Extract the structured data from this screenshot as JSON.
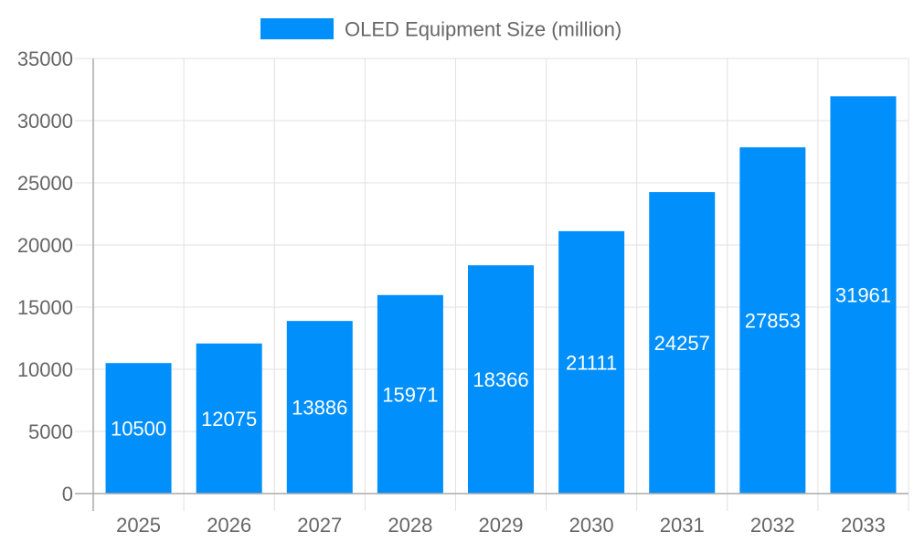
{
  "chart_data": {
    "type": "bar",
    "categories": [
      "2025",
      "2026",
      "2027",
      "2028",
      "2029",
      "2030",
      "2031",
      "2032",
      "2033"
    ],
    "series": [
      {
        "name": "OLED Equipment Size (million)",
        "values": [
          10500,
          12075,
          13886,
          15971,
          18366,
          21111,
          24257,
          27853,
          31961
        ]
      }
    ],
    "title": "",
    "xlabel": "",
    "ylabel": "",
    "ylim": [
      0,
      35000
    ],
    "yticks": [
      0,
      5000,
      10000,
      15000,
      20000,
      25000,
      30000,
      35000
    ],
    "grid": true,
    "legend": "top-center",
    "data_labels": true,
    "colors": {
      "bar": "#008ffb",
      "text": "#666666",
      "grid": "#e0e0e0",
      "axis": "#aaaaaa",
      "label": "#ffffff"
    }
  }
}
